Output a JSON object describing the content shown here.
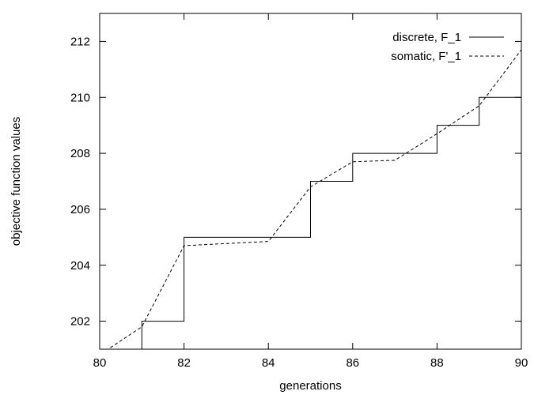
{
  "chart_data": {
    "type": "line",
    "title": "",
    "xlabel": "generations",
    "ylabel": "objective function values",
    "xlim": [
      80,
      90
    ],
    "ylim": [
      201,
      213
    ],
    "x_ticks": [
      80,
      82,
      84,
      86,
      88,
      90
    ],
    "y_ticks": [
      202,
      204,
      206,
      208,
      210,
      212
    ],
    "grid": false,
    "legend_position": "top-right",
    "series": [
      {
        "name": "discrete, F_1",
        "style": "solid",
        "color": "#000000",
        "step": true,
        "x": [
          81,
          82,
          85,
          86,
          88,
          89,
          90
        ],
        "y": [
          202,
          205,
          207,
          208,
          209,
          210,
          210
        ]
      },
      {
        "name": "somatic, F'_1",
        "style": "dashed",
        "color": "#000000",
        "step": false,
        "x": [
          80,
          80.2,
          81,
          82,
          84,
          85,
          86,
          87,
          88,
          89,
          90
        ],
        "y": [
          200.6,
          201.0,
          201.8,
          204.7,
          204.85,
          206.8,
          207.7,
          207.75,
          208.7,
          209.7,
          211.7
        ]
      }
    ]
  }
}
